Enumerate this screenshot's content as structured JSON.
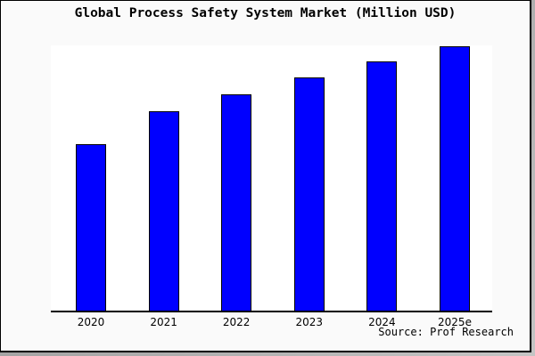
{
  "frame": {
    "background": "#fafafa",
    "border_color": "#000000",
    "shadow_color": "#8e8e8e"
  },
  "chart_data": {
    "type": "bar",
    "title": "Global Process Safety System Market (Million USD)",
    "categories": [
      "2020",
      "2021",
      "2022",
      "2023",
      "2024",
      "2025e"
    ],
    "values": [
      63,
      75.5,
      81.7,
      88.1,
      94.1,
      100
    ],
    "value_note": "relative scale, tallest bar (2025e) = 100; the source image shows no y-axis ticks or value labels",
    "xlabel": "",
    "ylabel": "",
    "ylim": [
      0,
      100.3
    ],
    "grid": false,
    "legend_position": "none",
    "bar_fill": "#0000ff",
    "bar_edge": "#000000",
    "plot_background": "#ffffff",
    "axis_line_color": "#000000",
    "source_note": "Source: Prof Research"
  }
}
